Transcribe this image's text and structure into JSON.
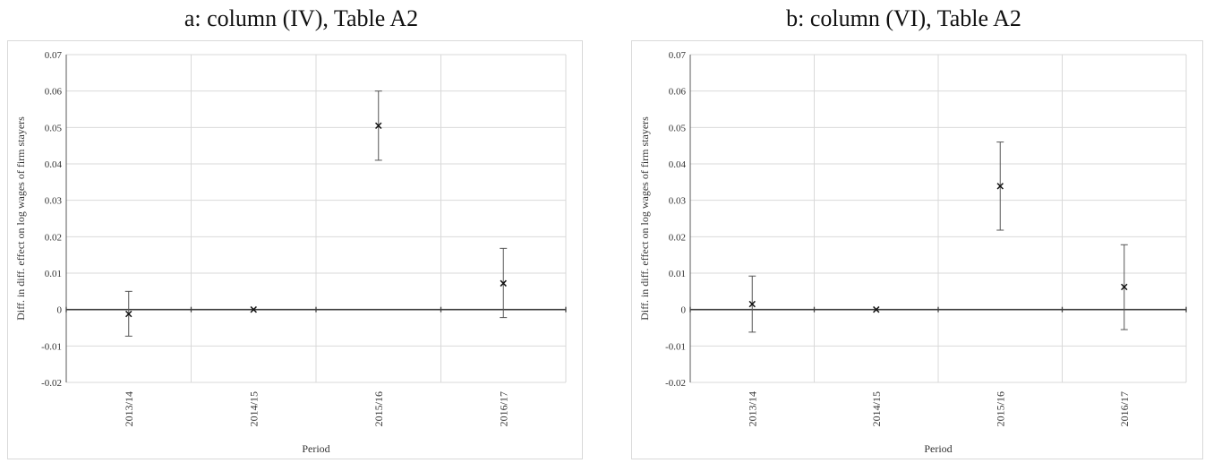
{
  "chart_data": [
    {
      "type": "scatter",
      "title": "a: column (IV), Table A2",
      "xlabel": "Period",
      "ylabel": "Diff. in diff. effect on log wages of firm stayers",
      "categories": [
        "2013/14",
        "2014/15",
        "2015/16",
        "2016/17"
      ],
      "values": [
        -0.0012,
        0.0,
        0.0505,
        0.0072
      ],
      "lower": [
        -0.0073,
        0.0,
        0.041,
        -0.0022
      ],
      "upper": [
        0.005,
        0.0,
        0.06,
        0.0168
      ],
      "ylim": [
        -0.02,
        0.07
      ],
      "yticks": [
        "0.07",
        "0.06",
        "0.05",
        "0.04",
        "0.03",
        "0.02",
        "0.01",
        "0",
        "-0.01",
        "-0.02"
      ],
      "grid": true
    },
    {
      "type": "scatter",
      "title": "b: column (VI), Table A2",
      "xlabel": "Period",
      "ylabel": "Diff. in diff. effect on log wages of firm stayers",
      "categories": [
        "2013/14",
        "2014/15",
        "2015/16",
        "2016/17"
      ],
      "values": [
        0.0015,
        0.0,
        0.0339,
        0.0062
      ],
      "lower": [
        -0.0062,
        0.0,
        0.0218,
        -0.0055
      ],
      "upper": [
        0.0092,
        0.0,
        0.046,
        0.0178
      ],
      "ylim": [
        -0.02,
        0.07
      ],
      "yticks": [
        "0.07",
        "0.06",
        "0.05",
        "0.04",
        "0.03",
        "0.02",
        "0.01",
        "0",
        "-0.01",
        "-0.02"
      ],
      "grid": true
    }
  ]
}
